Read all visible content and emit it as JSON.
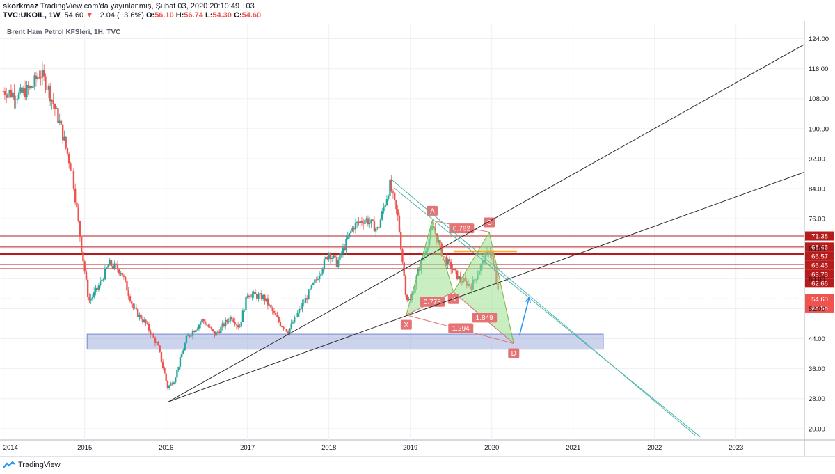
{
  "header": {
    "author": "skorkmaz",
    "published_text": "TradingView.com'da yayınlanmış, Şubat 03, 2020 20:10:49 +03",
    "symbol_line": "TVC:UKOIL, 1W",
    "last": "54.60",
    "change": "−2.04 (−3.6%)",
    "change_arrow": "▼",
    "o_label": "O:",
    "o_value": "56.10",
    "h_label": "H:",
    "h_value": "56.74",
    "l_label": "L:",
    "l_value": "54.30",
    "c_label": "C:",
    "c_value": "54.60"
  },
  "series_title": "Brent Ham Petrol KFSleri, 1H, TVC",
  "footer": {
    "brand": "TradingView"
  },
  "colors": {
    "up": "#26a69a",
    "down": "#ef5350",
    "level": "#b71c1c",
    "harmonic_fill": "#9be08f",
    "harmonic_label": "#e57373",
    "zone": "#8fa0d8",
    "trend": "#2b2b2b",
    "channel": "#4db6ac",
    "orange": "#ffa726",
    "arrow": "#2196f3"
  },
  "chart_data": {
    "type": "candlestick",
    "title": "Brent Ham Petrol KFSleri, 1H, TVC",
    "x_ticks": [
      "2014",
      "2015",
      "2016",
      "2017",
      "2018",
      "2019",
      "2020",
      "2021",
      "2022",
      "2023"
    ],
    "y_ticks": [
      124,
      116,
      108,
      100,
      92,
      84,
      76,
      68,
      60,
      52,
      44,
      36,
      28,
      20
    ],
    "y_tick_labels": [
      "124.00",
      "116.00",
      "108.00",
      "100.00",
      "92.00",
      "84.00",
      "76.00",
      "68.00",
      "60.00",
      "52.00",
      "44.00",
      "36.00",
      "28.00",
      "20.00"
    ],
    "ylim": [
      17,
      128
    ],
    "xlim": [
      2013.96,
      2023.84
    ],
    "grid": true,
    "approx_weekly_path": [
      [
        2014.0,
        110
      ],
      [
        2014.2,
        109
      ],
      [
        2014.35,
        111
      ],
      [
        2014.45,
        115
      ],
      [
        2014.55,
        111
      ],
      [
        2014.7,
        101
      ],
      [
        2014.85,
        88
      ],
      [
        2014.95,
        70
      ],
      [
        2015.05,
        54
      ],
      [
        2015.15,
        57
      ],
      [
        2015.3,
        64
      ],
      [
        2015.45,
        62
      ],
      [
        2015.6,
        52
      ],
      [
        2015.75,
        48
      ],
      [
        2015.9,
        42
      ],
      [
        2016.02,
        31
      ],
      [
        2016.1,
        33
      ],
      [
        2016.25,
        44
      ],
      [
        2016.45,
        49
      ],
      [
        2016.6,
        45
      ],
      [
        2016.8,
        50
      ],
      [
        2016.9,
        47
      ],
      [
        2017.0,
        56
      ],
      [
        2017.2,
        55
      ],
      [
        2017.4,
        48
      ],
      [
        2017.5,
        46
      ],
      [
        2017.65,
        52
      ],
      [
        2017.85,
        60
      ],
      [
        2018.0,
        67
      ],
      [
        2018.1,
        64
      ],
      [
        2018.3,
        74
      ],
      [
        2018.45,
        76
      ],
      [
        2018.6,
        73
      ],
      [
        2018.75,
        85
      ],
      [
        2018.85,
        76
      ],
      [
        2018.95,
        55
      ],
      [
        2019.0,
        54
      ],
      [
        2019.1,
        62
      ],
      [
        2019.28,
        74
      ],
      [
        2019.4,
        66
      ],
      [
        2019.5,
        63
      ],
      [
        2019.6,
        60
      ],
      [
        2019.75,
        58
      ],
      [
        2019.88,
        64
      ],
      [
        2019.98,
        68
      ],
      [
        2020.05,
        60
      ],
      [
        2020.09,
        54.6
      ]
    ],
    "last_price": 54.6,
    "price_tag_extra": "4d 5h",
    "horizontal_levels": [
      {
        "value": 71.38,
        "label": "71.38"
      },
      {
        "value": 68.45,
        "label": "68.45"
      },
      {
        "value": 66.57,
        "label": "66.57"
      },
      {
        "value": 66.45,
        "label": "66.45"
      },
      {
        "value": 63.78,
        "label": "63.78"
      },
      {
        "value": 62.66,
        "label": "62.66"
      }
    ],
    "support_zone": {
      "x_from": 2015.03,
      "x_to": 2021.37,
      "y_from": 41.2,
      "y_to": 45.2
    },
    "trend_lines": [
      {
        "from": [
          2016.03,
          27.2
        ],
        "to": [
          2023.84,
          122.5
        ]
      },
      {
        "from": [
          2016.03,
          27.2
        ],
        "to": [
          2023.84,
          88.4
        ]
      }
    ],
    "channel_lines": [
      {
        "from": [
          2018.76,
          86.6
        ],
        "to": [
          2022.5,
          18.2
        ]
      },
      {
        "from": [
          2018.8,
          84.2
        ],
        "to": [
          2022.56,
          17.8
        ]
      }
    ],
    "harmonic_pattern": {
      "points": {
        "X": [
          2018.95,
          50.3
        ],
        "A": [
          2019.27,
          75.5
        ],
        "B": [
          2019.53,
          56.4
        ],
        "C": [
          2019.97,
          72.4
        ],
        "D": [
          2020.27,
          42.7
        ]
      },
      "ratios": [
        {
          "label": "0.782",
          "x": 2019.63,
          "y": 73.4
        },
        {
          "label": "0.778",
          "x": 2019.27,
          "y": 53.8
        },
        {
          "label": "1.849",
          "x": 2019.91,
          "y": 49.6
        },
        {
          "label": "1.294",
          "x": 2019.62,
          "y": 46.8
        }
      ]
    },
    "orange_level": {
      "value": 67.3,
      "x_from": 2019.53,
      "x_to": 2020.31
    },
    "projection_arrow": {
      "from": [
        2020.34,
        44.8
      ],
      "to": [
        2020.46,
        55.0
      ]
    }
  }
}
